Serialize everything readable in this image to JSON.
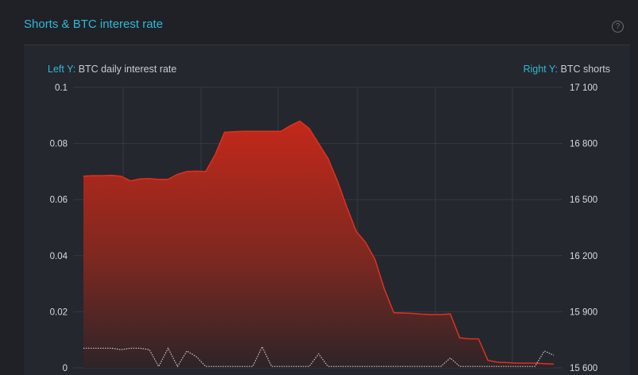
{
  "header": {
    "title": "Shorts & BTC interest rate",
    "help_icon": "question-circle-icon"
  },
  "captions": {
    "left_prefix": "Left Y:",
    "left_label": "BTC daily interest rate",
    "right_prefix": "Right Y:",
    "right_label": "BTC shorts"
  },
  "colors": {
    "accent": "#30b8d6",
    "shorts_line": "#e0301e",
    "shorts_fill_top": "#c4281a",
    "interest_line": "#c8c8c8",
    "grid": "#353941"
  },
  "chart_data": {
    "type": "area",
    "x": [
      0,
      2,
      4,
      6,
      8,
      10,
      12,
      14,
      16,
      18,
      20,
      22,
      24,
      26,
      28,
      30,
      32,
      34,
      36,
      38,
      40,
      42,
      44,
      46,
      48,
      50,
      52,
      54,
      56,
      58,
      60,
      62,
      64,
      66,
      68,
      70,
      72,
      74,
      76,
      78,
      80,
      82,
      84,
      86,
      88,
      90,
      92,
      94,
      96,
      98,
      100
    ],
    "y_left_ticks": [
      "0",
      "0.02",
      "0.04",
      "0.06",
      "0.08",
      "0.1"
    ],
    "y_right_ticks": [
      "15 600",
      "15 900",
      "16 200",
      "16 500",
      "16 800",
      "17 100"
    ],
    "ylim_left": [
      0,
      0.1
    ],
    "ylim_right": [
      15600,
      17100
    ],
    "series": [
      {
        "axis": "right",
        "values": [
          16625,
          16628,
          16628,
          16630,
          16625,
          16600,
          16610,
          16612,
          16608,
          16608,
          16635,
          16650,
          16652,
          16650,
          16740,
          16860,
          16863,
          16865,
          16865,
          16865,
          16865,
          16865,
          16895,
          16920,
          16880,
          16800,
          16720,
          16600,
          16460,
          16330,
          16270,
          16180,
          16020,
          15895,
          15893,
          15891,
          15887,
          15885,
          15885,
          15888,
          15760,
          15755,
          15755,
          15640,
          15630,
          15628,
          15625,
          15625,
          15625,
          15622,
          15620
        ]
      },
      {
        "axis": "left",
        "values": [
          0.007,
          0.007,
          0.007,
          0.007,
          0.0065,
          0.007,
          0.007,
          0.0065,
          0.0005,
          0.007,
          0.0005,
          0.006,
          0.004,
          0.0005,
          0.0005,
          0.0005,
          0.0005,
          0.0005,
          0.0005,
          0.0075,
          0.0005,
          0.0005,
          0.0005,
          0.0005,
          0.0005,
          0.005,
          0.0005,
          0.0005,
          0.0005,
          0.0005,
          0.0005,
          0.0005,
          0.0005,
          0.0005,
          0.0005,
          0.0005,
          0.0005,
          0.0005,
          0.0005,
          0.0035,
          0.0005,
          0.0005,
          0.0005,
          0.0005,
          0.0005,
          0.0005,
          0.0005,
          0.0005,
          0.0005,
          0.006,
          0.0045
        ]
      }
    ]
  }
}
